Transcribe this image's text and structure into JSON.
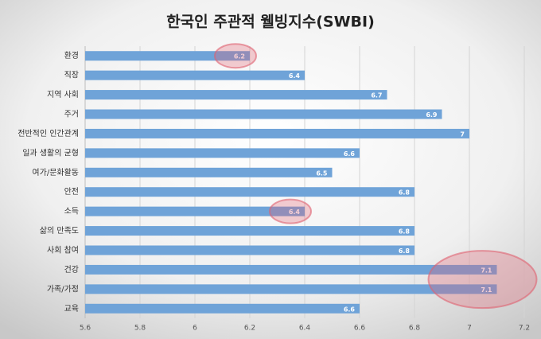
{
  "chart_data": {
    "type": "bar",
    "orientation": "horizontal",
    "title": "한국인 주관적 웰빙지수(SWBI)",
    "categories": [
      "환경",
      "직장",
      "지역 사회",
      "주거",
      "전반적인 인간관계",
      "일과 생활의 균형",
      "여가/문화활동",
      "안전",
      "소득",
      "삶의 만족도",
      "사회 참여",
      "건강",
      "가족/가정",
      "교육"
    ],
    "values": [
      6.2,
      6.4,
      6.7,
      6.9,
      7,
      6.6,
      6.5,
      6.8,
      6.4,
      6.8,
      6.8,
      7.1,
      7.1,
      6.6
    ],
    "color": "#6fa3d8",
    "xlim": [
      5.6,
      7.2
    ],
    "xticks": [
      5.6,
      5.8,
      6,
      6.2,
      6.4,
      6.6,
      6.8,
      7,
      7.2
    ],
    "grid": true,
    "highlights": [
      [
        0
      ],
      [
        8
      ],
      [
        11,
        12
      ]
    ],
    "highlight_color": "#e06070"
  }
}
